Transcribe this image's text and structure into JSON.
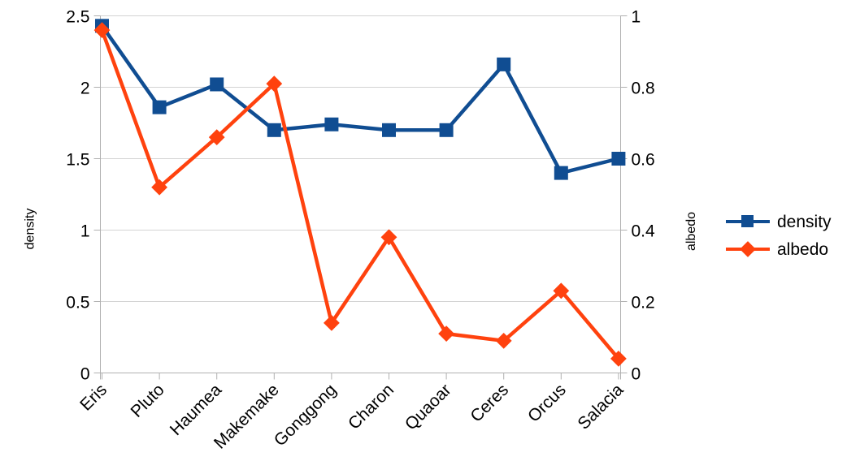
{
  "chart_data": {
    "type": "line",
    "categories": [
      "Eris",
      "Pluto",
      "Haumea",
      "Makemake",
      "Gonggong",
      "Charon",
      "Quaoar",
      "Ceres",
      "Orcus",
      "Salacia"
    ],
    "series": [
      {
        "name": "density",
        "axis": "left",
        "marker": "square",
        "color": "#104d92",
        "values": [
          2.43,
          1.86,
          2.02,
          1.7,
          1.74,
          1.7,
          1.7,
          2.16,
          1.4,
          1.5
        ]
      },
      {
        "name": "albedo",
        "axis": "right",
        "marker": "diamond",
        "color": "#ff420e",
        "values": [
          0.96,
          0.52,
          0.66,
          0.81,
          0.14,
          0.38,
          0.11,
          0.09,
          0.23,
          0.04
        ]
      }
    ],
    "left_axis": {
      "title": "density",
      "min": 0,
      "max": 2.5,
      "tick_step": 0.5,
      "ticks": [
        "0",
        "0.5",
        "1",
        "1.5",
        "2",
        "2.5"
      ]
    },
    "right_axis": {
      "title": "albedo",
      "min": 0,
      "max": 1,
      "tick_step": 0.2,
      "ticks": [
        "0",
        "0.2",
        "0.4",
        "0.6",
        "0.8",
        "1"
      ]
    },
    "legend": {
      "position": "right",
      "entries": [
        "density",
        "albedo"
      ]
    },
    "grid": "horizontal-on",
    "colors": {
      "grid": "#d3d3d3",
      "axis": "#b0b0b0",
      "text": "#000000",
      "background": "#ffffff"
    }
  }
}
